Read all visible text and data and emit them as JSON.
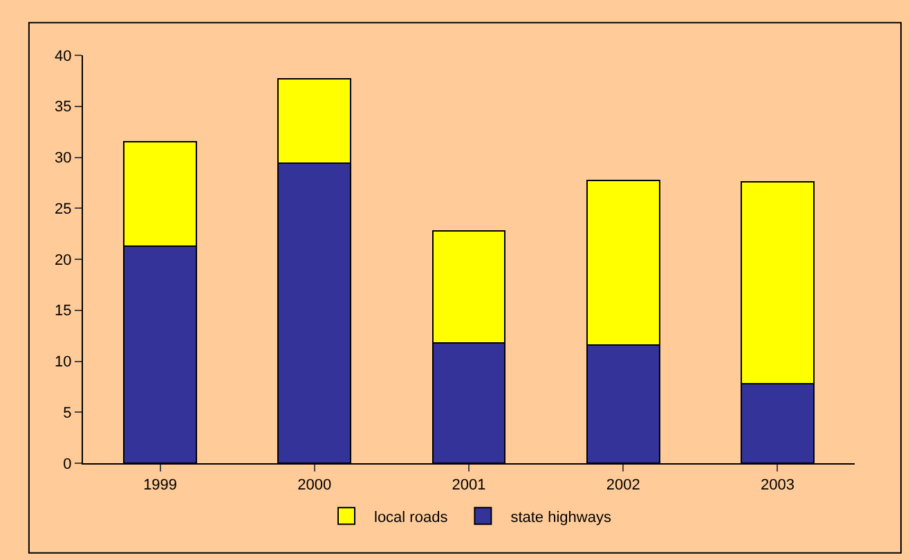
{
  "chart_data": {
    "type": "bar",
    "stacked": true,
    "categories": [
      "1999",
      "2000",
      "2001",
      "2002",
      "2003"
    ],
    "series": [
      {
        "name": "state highways",
        "color": "#333399",
        "values": [
          21.3,
          29.4,
          11.8,
          11.6,
          7.8
        ]
      },
      {
        "name": "local roads",
        "color": "#ffff00",
        "values": [
          10.2,
          8.3,
          11.0,
          16.1,
          19.8
        ]
      }
    ],
    "ylim": [
      0,
      40
    ],
    "yticks": [
      0,
      5,
      10,
      15,
      20,
      25,
      30,
      35,
      40
    ],
    "grid": false,
    "legend": "bottom"
  }
}
